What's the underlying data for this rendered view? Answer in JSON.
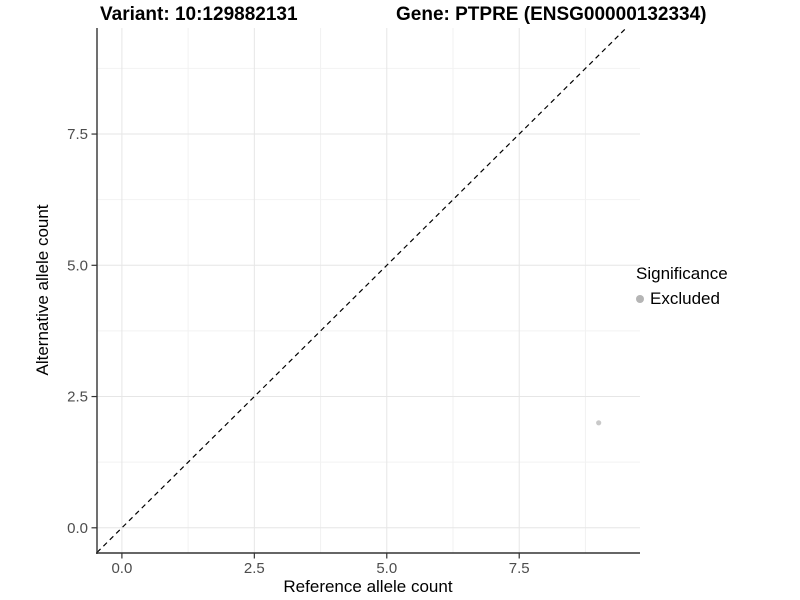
{
  "title": {
    "left": "Variant: 10:129882131",
    "right": "Gene: PTPRE (ENSG00000132334)"
  },
  "chart_data": {
    "type": "scatter",
    "xlabel": "Reference allele count",
    "ylabel": "Alternative allele count",
    "xlim": [
      -0.47,
      9.78
    ],
    "ylim": [
      -0.48,
      9.52
    ],
    "x_ticks": {
      "values": [
        0,
        2.5,
        5,
        7.5
      ],
      "labels": [
        "0.0",
        "2.5",
        "5.0",
        "7.5"
      ],
      "minor": [
        1.25,
        3.75,
        6.25,
        8.75
      ]
    },
    "y_ticks": {
      "values": [
        0,
        2.5,
        5,
        7.5
      ],
      "labels": [
        "0.0",
        "2.5",
        "5.0",
        "7.5"
      ],
      "minor": [
        1.25,
        3.75,
        6.25,
        8.75
      ]
    },
    "grid": "major+minor",
    "identity_line": {
      "slope": 1,
      "intercept": 0,
      "style": "dashed",
      "color": "#000000"
    },
    "series": [
      {
        "name": "Excluded",
        "color": "#c9c9c9",
        "points": [
          {
            "x": 9,
            "y": 2
          }
        ]
      }
    ],
    "legend": {
      "title": "Significance",
      "position": "right",
      "items": [
        {
          "label": "Excluded",
          "color": "#b5b5b5",
          "marker": "circle"
        }
      ]
    },
    "colors": {
      "grid_major": "#e6e6e6",
      "grid_minor": "#f2f2f2",
      "axis_line": "#333333",
      "tick_label": "#4d4d4d",
      "point": "#c9c9c9"
    }
  }
}
